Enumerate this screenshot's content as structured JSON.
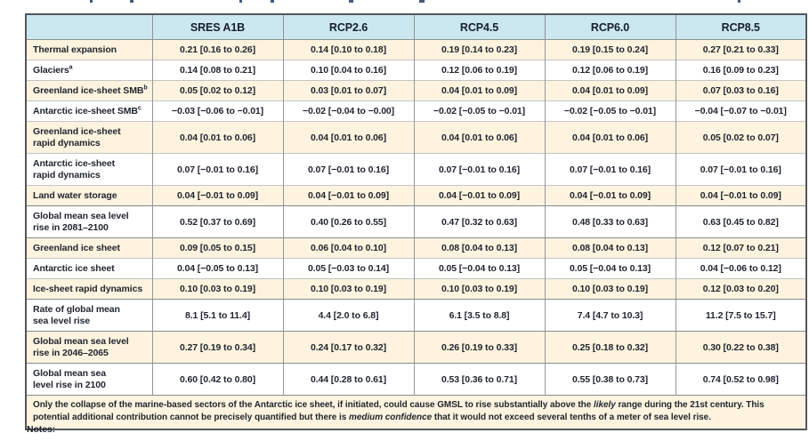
{
  "colors": {
    "header_bg": "#cbe7f0",
    "shaded_row_bg": "#fdf3de",
    "text": "#1f242e"
  },
  "table": {
    "columns": [
      "",
      "SRES A1B",
      "RCP2.6",
      "RCP4.5",
      "RCP6.0",
      "RCP8.5"
    ],
    "rows": [
      {
        "label": "Thermal expansion",
        "sup": "",
        "lines": 1,
        "shaded": true,
        "section": false,
        "values": [
          "0.21 [0.16 to 0.26]",
          "0.14 [0.10 to 0.18]",
          "0.19 [0.14 to 0.23]",
          "0.19 [0.15 to 0.24]",
          "0.27 [0.21 to 0.33]"
        ]
      },
      {
        "label": "Glaciers",
        "sup": "a",
        "lines": 1,
        "shaded": false,
        "section": false,
        "values": [
          "0.14 [0.08 to 0.21]",
          "0.10 [0.04 to 0.16]",
          "0.12 [0.06 to 0.19]",
          "0.12 [0.06 to 0.19]",
          "0.16 [0.09 to 0.23]"
        ]
      },
      {
        "label": "Greenland ice-sheet SMB",
        "sup": "b",
        "lines": 1,
        "shaded": true,
        "section": false,
        "values": [
          "0.05 [0.02 to 0.12]",
          "0.03 [0.01 to 0.07]",
          "0.04 [0.01 to 0.09]",
          "0.04 [0.01 to 0.09]",
          "0.07 [0.03 to 0.16]"
        ]
      },
      {
        "label": "Antarctic ice-sheet SMB",
        "sup": "c",
        "lines": 1,
        "shaded": false,
        "section": false,
        "values": [
          "−0.03 [−0.06 to −0.01]",
          "−0.02 [−0.04 to −0.00]",
          "−0.02 [−0.05 to −0.01]",
          "−0.02 [−0.05 to −0.01]",
          "−0.04 [−0.07 to −0.01]"
        ]
      },
      {
        "label": "Greenland ice-sheet\nrapid dynamics",
        "sup": "",
        "lines": 2,
        "shaded": true,
        "section": false,
        "values": [
          "0.04 [0.01 to 0.06]",
          "0.04 [0.01 to 0.06]",
          "0.04 [0.01 to 0.06]",
          "0.04 [0.01 to 0.06]",
          "0.05 [0.02 to 0.07]"
        ]
      },
      {
        "label": "Antarctic ice-sheet\nrapid dynamics",
        "sup": "",
        "lines": 2,
        "shaded": false,
        "section": false,
        "values": [
          "0.07 [−0.01 to 0.16]",
          "0.07 [−0.01 to 0.16]",
          "0.07 [−0.01 to 0.16]",
          "0.07 [−0.01 to 0.16]",
          "0.07 [−0.01 to 0.16]"
        ]
      },
      {
        "label": "Land water storage",
        "sup": "",
        "lines": 1,
        "shaded": true,
        "section": false,
        "values": [
          "0.04 [−0.01 to 0.09]",
          "0.04 [−0.01 to 0.09]",
          "0.04 [−0.01 to 0.09]",
          "0.04 [−0.01 to 0.09]",
          "0.04 [−0.01 to 0.09]"
        ]
      },
      {
        "label": "Global mean sea level\nrise in 2081–2100",
        "sup": "",
        "lines": 2,
        "shaded": false,
        "section": true,
        "values": [
          "0.52 [0.37 to 0.69]",
          "0.40 [0.26 to 0.55]",
          "0.47 [0.32 to 0.63]",
          "0.48 [0.33 to 0.63]",
          "0.63 [0.45 to 0.82]"
        ]
      },
      {
        "label": "Greenland ice sheet",
        "sup": "",
        "lines": 1,
        "shaded": true,
        "section": true,
        "values": [
          "0.09 [0.05 to 0.15]",
          "0.06 [0.04 to 0.10]",
          "0.08 [0.04 to 0.13]",
          "0.08 [0.04 to 0.13]",
          "0.12 [0.07 to 0.21]"
        ]
      },
      {
        "label": "Antarctic ice sheet",
        "sup": "",
        "lines": 1,
        "shaded": false,
        "section": false,
        "values": [
          "0.04 [−0.05 to 0.13]",
          "0.05 [−0.03 to 0.14]",
          "0.05 [−0.04 to 0.13]",
          "0.05 [−0.04 to 0.13]",
          "0.04 [−0.06 to 0.12]"
        ]
      },
      {
        "label": "Ice-sheet rapid dynamics",
        "sup": "",
        "lines": 1,
        "shaded": true,
        "section": false,
        "values": [
          "0.10 [0.03 to 0.19]",
          "0.10 [0.03 to 0.19]",
          "0.10 [0.03 to 0.19]",
          "0.10 [0.03 to 0.19]",
          "0.12 [0.03 to 0.20]"
        ]
      },
      {
        "label": "Rate of global mean\nsea level rise",
        "sup": "",
        "lines": 2,
        "shaded": false,
        "section": true,
        "values": [
          "8.1 [5.1 to 11.4]",
          "4.4 [2.0 to 6.8]",
          "6.1 [3.5 to 8.8]",
          "7.4 [4.7 to 10.3]",
          "11.2 [7.5 to 15.7]"
        ]
      },
      {
        "label": "Global mean sea level\nrise in 2046–2065",
        "sup": "",
        "lines": 2,
        "shaded": true,
        "section": true,
        "values": [
          "0.27 [0.19 to 0.34]",
          "0.24 [0.17 to 0.32]",
          "0.26 [0.19 to 0.33]",
          "0.25 [0.18 to 0.32]",
          "0.30 [0.22 to 0.38]"
        ]
      },
      {
        "label": "Global mean sea\nlevel rise in 2100",
        "sup": "",
        "lines": 2,
        "shaded": false,
        "section": true,
        "values": [
          "0.60 [0.42 to 0.80]",
          "0.44 [0.28 to 0.61]",
          "0.53 [0.36 to 0.71]",
          "0.55 [0.38 to 0.73]",
          "0.74 [0.52 to 0.98]"
        ]
      }
    ],
    "footnote": {
      "segments": [
        {
          "text": "Only the collapse of the marine-based sectors of the Antarctic ice sheet, if initiated, could cause GMSL to rise substantially above the ",
          "italic": false
        },
        {
          "text": "likely",
          "italic": true
        },
        {
          "text": " range during the 21st century. This potential additional contribution cannot be precisely quantified but there is ",
          "italic": false
        },
        {
          "text": "medium confidence",
          "italic": true
        },
        {
          "text": " that it would not exceed several tenths of a meter of sea level rise.",
          "italic": false
        }
      ]
    }
  },
  "notes_label": "Notes:"
}
